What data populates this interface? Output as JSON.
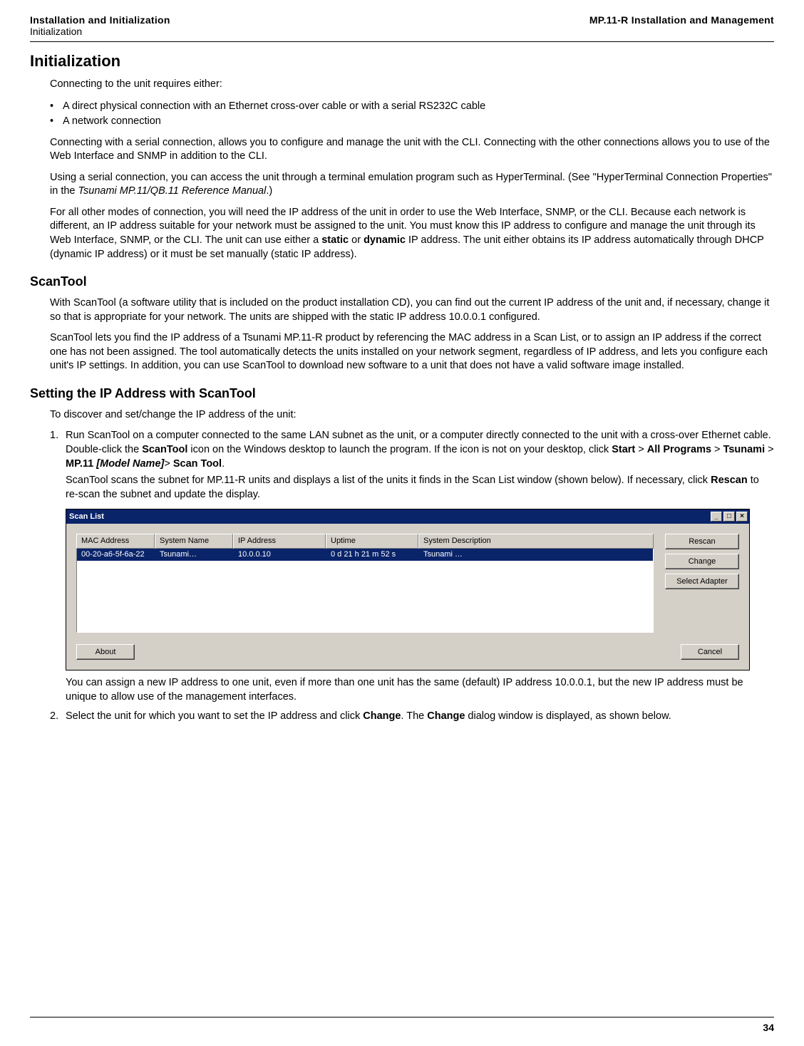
{
  "header": {
    "left_bold": "Installation and Initialization",
    "left_plain": "Initialization",
    "right_bold": "MP.11-R Installation and Management"
  },
  "h1": "Initialization",
  "p1": "Connecting to the unit requires either:",
  "bullets": {
    "b1": "A direct physical connection with an Ethernet cross-over cable or with a serial RS232C cable",
    "b2": "A network connection"
  },
  "p2": "Connecting with a serial connection, allows you to configure and manage the unit with the CLI. Connecting with the other connections allows you to use of the Web Interface and SNMP in addition to the CLI.",
  "p3a": "Using a serial connection, you can access the unit through a terminal emulation program such as HyperTerminal. (See \"HyperTerminal Connection Properties\" in the ",
  "p3i": "Tsunami MP.11/QB.11 Reference Manual",
  "p3b": ".)",
  "p4a": "For all other modes of connection, you will need the IP address of the unit in order to use the Web Interface, SNMP, or the CLI. Because each network is different, an IP address suitable for your network must be assigned to the unit. You must know this IP address to configure and manage the unit through its Web Interface, SNMP, or the CLI. The unit can use either a ",
  "p4b1": "static",
  "p4c": " or ",
  "p4b2": "dynamic",
  "p4d": " IP address. The unit either obtains its IP address automatically through DHCP (dynamic IP address) or it must be set manually (static IP address).",
  "h2a": "ScanTool",
  "p5": "With ScanTool (a software utility that is included on the product installation CD), you can find out the current IP address of the unit and, if necessary, change it so that is appropriate for your network. The units are shipped with the static IP address 10.0.0.1 configured.",
  "p6": "ScanTool lets you find the IP address of a Tsunami MP.11-R product by referencing the MAC address in a Scan List, or to assign an IP address if the correct one has not been assigned. The tool automatically detects the units installed on your network segment, regardless of IP address, and lets you configure each unit's IP settings. In addition, you can use ScanTool to download new software to a unit that does not have a valid software image installed.",
  "h2b": "Setting the IP Address with ScanTool",
  "p7": "To discover and set/change the IP address of the unit:",
  "step1": {
    "a": "Run ScanTool on a computer connected to the same LAN subnet as the unit, or a computer directly connected to the unit with a cross-over Ethernet cable. Double-click the ",
    "b1": "ScanTool",
    "b": " icon on the Windows desktop to launch the program. If the icon is not on your desktop, click ",
    "b2": "Start",
    "gt1": " > ",
    "b3": "All Programs",
    "gt2": " > ",
    "b4": "Tsunami",
    "gt3": " > ",
    "b5": "MP.11 ",
    "i1": "[Model Name]",
    "gt4": "> ",
    "b6": "Scan Tool",
    "end1": ".",
    "para2a": "ScanTool scans the subnet for MP.11-R units and displays a list of the units it finds in the Scan List window (shown below). If necessary, click ",
    "b7": "Rescan",
    "para2b": " to re-scan the subnet and update the display."
  },
  "scanwin": {
    "title": "Scan List",
    "min": "_",
    "max": "□",
    "close": "×",
    "columns": {
      "mac": "MAC Address",
      "name": "System Name",
      "ip": "IP Address",
      "uptime": "Uptime",
      "desc": "System Description"
    },
    "row": {
      "mac": "00-20-a6-5f-6a-22",
      "name": "Tsunami…",
      "ip": "10.0.0.10",
      "uptime": "0 d 21 h 21 m 52 s",
      "desc": "Tsunami …"
    },
    "buttons": {
      "rescan": "Rescan",
      "change": "Change",
      "adapter": "Select Adapter",
      "about": "About",
      "cancel": "Cancel"
    }
  },
  "step1_after": "You can assign a new IP address to one unit, even if more than one unit has the same (default) IP address 10.0.0.1, but the new IP address must be unique to allow use of the management interfaces.",
  "step2": {
    "a": "Select the unit for which you want to set the IP address and click ",
    "b1": "Change",
    "b": ". The ",
    "b2": "Change",
    "c": " dialog window is displayed, as shown below."
  },
  "page": "34"
}
